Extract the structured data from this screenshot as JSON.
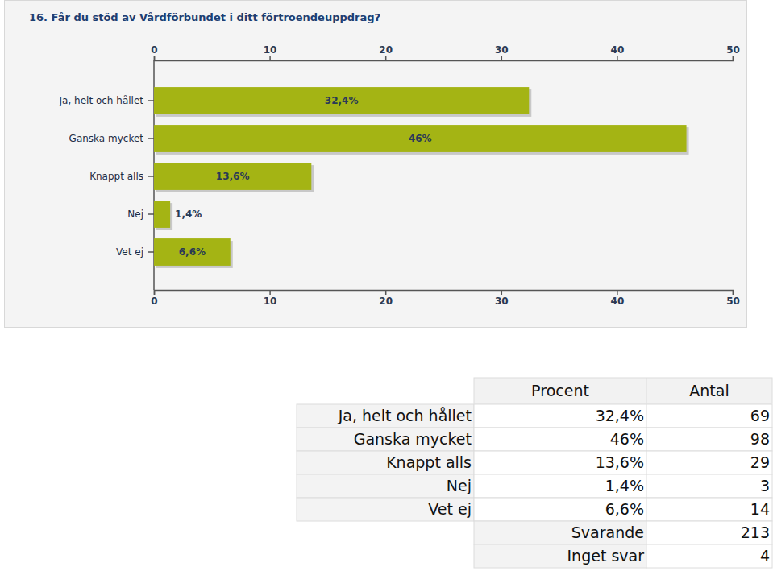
{
  "chart_data": {
    "type": "bar",
    "orientation": "horizontal",
    "title": "16. Får du stöd av Vårdförbundet i ditt förtroendeuppdrag?",
    "categories": [
      "Ja, helt och hållet",
      "Ganska mycket",
      "Knappt alls",
      "Nej",
      "Vet ej"
    ],
    "values": [
      32.4,
      46,
      13.6,
      1.4,
      6.6
    ],
    "value_labels": [
      "32,4%",
      "46%",
      "13,6%",
      "1,4%",
      "6,6%"
    ],
    "color": "#a4b414",
    "xlim": [
      0,
      50
    ],
    "xticks": [
      0,
      10,
      20,
      30,
      40,
      50
    ],
    "grid": false,
    "data_labels": true
  },
  "table": {
    "columns": [
      "Procent",
      "Antal"
    ],
    "rows": [
      {
        "label": "Ja, helt och hållet",
        "procent": "32,4%",
        "antal": 69
      },
      {
        "label": "Ganska mycket",
        "procent": "46%",
        "antal": 98
      },
      {
        "label": "Knappt alls",
        "procent": "13,6%",
        "antal": 29
      },
      {
        "label": "Nej",
        "procent": "1,4%",
        "antal": 3
      },
      {
        "label": "Vet ej",
        "procent": "6,6%",
        "antal": 14
      }
    ],
    "summary": [
      {
        "label": "Svarande",
        "value": 213
      },
      {
        "label": "Inget svar",
        "value": 4
      }
    ]
  }
}
